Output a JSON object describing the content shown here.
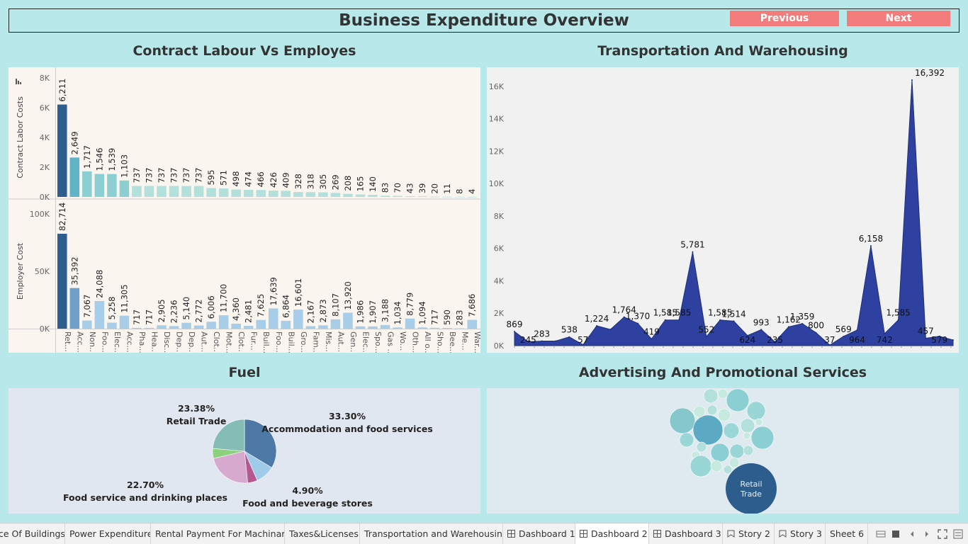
{
  "header": {
    "title": "Business Expenditure Overview",
    "prev_label": "Previous",
    "next_label": "Next"
  },
  "sections": {
    "contract": "Contract Labour Vs Employes",
    "transport": "Transportation And Warehousing",
    "fuel": "Fuel",
    "advertising": "Advertising And Promotional Services"
  },
  "colors": {
    "background": "#b8e8ea",
    "button": "#f27b7b",
    "area": "#2e41a0",
    "bar_dark": "#2d5d8c",
    "bar_light": "#b3e0da"
  },
  "chart_data": [
    {
      "type": "bar",
      "title": "Contract Labour Vs Employes",
      "categories": [
        "Ret...",
        "Acc...",
        "Non...",
        "Foo...",
        "Elec...",
        "Acc...",
        "Pha...",
        "Hea...",
        "Disc...",
        "Dep...",
        "Dep...",
        "Aut...",
        "Clot...",
        "Mot...",
        "Clot...",
        "Fur...",
        "Buil...",
        "Foo...",
        "Buil...",
        "Gro...",
        "Fam...",
        "Mis...",
        "Aut...",
        "Gen...",
        "Elec...",
        "Spo...",
        "Gas ...",
        "Wo...",
        "Oth...",
        "All o...",
        "Sho...",
        "Bee...",
        "Me...",
        "War..."
      ],
      "series": [
        {
          "name": "Contract Labor Costs",
          "ylabel": "Contract Labor Costs",
          "ylim": [
            0,
            8000
          ],
          "ticks": [
            "0K",
            "2K",
            "4K",
            "6K",
            "8K"
          ],
          "tick_values": [
            0,
            2000,
            4000,
            6000,
            8000
          ],
          "values": [
            6211,
            2649,
            1717,
            1546,
            1539,
            1103,
            737,
            737,
            737,
            737,
            737,
            737,
            595,
            571,
            498,
            474,
            466,
            426,
            409,
            328,
            318,
            305,
            269,
            208,
            165,
            140,
            83,
            70,
            43,
            39,
            20,
            11,
            8,
            4
          ],
          "labels": [
            "6,211",
            "2,649",
            "1,717",
            "1,546",
            "1,539",
            "1,103",
            "737",
            "737",
            "737",
            "737",
            "737",
            "737",
            "595",
            "571",
            "498",
            "474",
            "466",
            "426",
            "409",
            "328",
            "318",
            "305",
            "269",
            "208",
            "165",
            "140",
            "83",
            "70",
            "43",
            "39",
            "20",
            "11",
            "8",
            "4"
          ]
        },
        {
          "name": "Employer Cost",
          "ylabel": "Employer Cost",
          "ylim": [
            0,
            100000
          ],
          "ticks": [
            "0K",
            "50K",
            "100K"
          ],
          "tick_values": [
            0,
            50000,
            100000
          ],
          "values": [
            82714,
            35392,
            7067,
            24088,
            5258,
            11305,
            717,
            717,
            2905,
            2236,
            5140,
            2772,
            6006,
            11700,
            4360,
            2481,
            7625,
            17639,
            6864,
            16601,
            2167,
            2873,
            8107,
            13920,
            1986,
            1907,
            3188,
            1034,
            8779,
            1094,
            717,
            590,
            283,
            7686
          ],
          "labels": [
            "82,714",
            "35,392",
            "7,067",
            "24,088",
            "5,258",
            "11,305",
            "717",
            "717",
            "2,905",
            "2,236",
            "5,140",
            "2,772",
            "6,006",
            "11,700",
            "4,360",
            "2,481",
            "7,625",
            "17,639",
            "6,864",
            "16,601",
            "2,167",
            "2,873",
            "8,107",
            "13,920",
            "1,986",
            "1,907",
            "3,188",
            "1,034",
            "8,779",
            "1,094",
            "717",
            "590",
            "283",
            "7,686"
          ]
        }
      ],
      "grid": false
    },
    {
      "type": "area",
      "title": "Transportation And Warehousing",
      "ylim": [
        0,
        16392
      ],
      "ticks": [
        "0K",
        "2K",
        "4K",
        "6K",
        "8K",
        "10K",
        "12K",
        "14K",
        "16K"
      ],
      "tick_values": [
        0,
        2000,
        4000,
        6000,
        8000,
        10000,
        12000,
        14000,
        16000
      ],
      "values": [
        869,
        245,
        283,
        283,
        538,
        57,
        1224,
        1000,
        1764,
        1370,
        419,
        1585,
        1585,
        5781,
        552,
        1585,
        1514,
        624,
        993,
        235,
        1162,
        1359,
        800,
        37,
        569,
        964,
        6158,
        742,
        1585,
        16392,
        457,
        579,
        350
      ],
      "labels": [
        "869",
        "245",
        "283",
        "",
        "538",
        "57",
        "1,224",
        "",
        "1,764",
        "1,370",
        "419",
        "1,585",
        "1,585",
        "5,781",
        "552",
        "1,585",
        "1,514",
        "624",
        "993",
        "235",
        "1,162",
        "1,359",
        "800",
        "37",
        "569",
        "964",
        "6,158",
        "742",
        "1,585",
        "16,392",
        "457",
        "579",
        ""
      ],
      "grid": false
    },
    {
      "type": "pie",
      "title": "Fuel",
      "slices": [
        {
          "label": "Accommodation and food services",
          "value": 33.3,
          "pct": "33.30%",
          "color": "#4e79a7"
        },
        {
          "label": "",
          "value": 9.7,
          "pct": "",
          "color": "#a0cbe8"
        },
        {
          "label": "Food and beverage stores",
          "value": 4.9,
          "pct": "4.90%",
          "color": "#b5588f"
        },
        {
          "label": "Food service and drinking places",
          "value": 22.7,
          "pct": "22.70%",
          "color": "#d7a9cf"
        },
        {
          "label": "",
          "value": 5.02,
          "pct": "",
          "color": "#8cd17d"
        },
        {
          "label": "Retail Trade",
          "value": 23.38,
          "pct": "23.38%",
          "color": "#86bcb6"
        }
      ]
    },
    {
      "type": "bubble",
      "title": "Advertising And Promotional Services",
      "highlight_label": "Retail Trade"
    }
  ],
  "tabs": [
    {
      "label": "ce Of Buildings",
      "icon": ""
    },
    {
      "label": "Power Expenditure",
      "icon": ""
    },
    {
      "label": "Rental Payment For Machinary",
      "icon": ""
    },
    {
      "label": "Taxes&Licenses",
      "icon": ""
    },
    {
      "label": "Transportation and Warehousing",
      "icon": ""
    },
    {
      "label": "Dashboard 1",
      "icon": "dashboard-icon"
    },
    {
      "label": "Dashboard 2",
      "icon": "dashboard-icon",
      "active": true
    },
    {
      "label": "Dashboard 3",
      "icon": "dashboard-icon"
    },
    {
      "label": "Story 2",
      "icon": "story-icon"
    },
    {
      "label": "Story 3",
      "icon": "story-icon"
    },
    {
      "label": "Sheet 6",
      "icon": ""
    }
  ]
}
